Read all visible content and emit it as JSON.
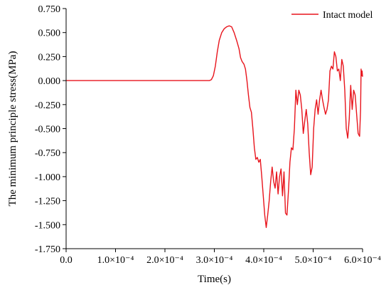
{
  "chart_data": {
    "type": "line",
    "title": "",
    "xlabel": "Time(s)",
    "ylabel": "The minimum principle stress(MPa)",
    "xlim": [
      0,
      0.0006
    ],
    "ylim": [
      -1.75,
      0.75
    ],
    "grid": false,
    "legend_position": "top-right",
    "x_ticks": [
      0,
      0.0001,
      0.0002,
      0.0003,
      0.0004,
      0.0005,
      0.0006
    ],
    "x_tick_labels": [
      "0.0",
      "1.0×10⁻⁴",
      "2.0×10⁻⁴",
      "3.0×10⁻⁴",
      "4.0×10⁻⁴",
      "5.0×10⁻⁴",
      "6.0×10⁻⁴"
    ],
    "y_ticks": [
      0.75,
      0.5,
      0.25,
      0,
      -0.25,
      -0.5,
      -0.75,
      -1,
      -1.25,
      -1.5,
      -1.75
    ],
    "y_tick_labels": [
      "0.750",
      "0.500",
      "0.250",
      "0.000",
      "-0.250",
      "-0.500",
      "-0.750",
      "-1.000",
      "-1.250",
      "-1.500",
      "-1.750"
    ],
    "series": [
      {
        "name": "Intact model",
        "color": "#e8141c",
        "points": [
          [
            0.0,
            0.0
          ],
          [
            0.00029,
            0.0
          ],
          [
            0.000294,
            0.01
          ],
          [
            0.000298,
            0.05
          ],
          [
            0.000302,
            0.15
          ],
          [
            0.000306,
            0.3
          ],
          [
            0.00031,
            0.42
          ],
          [
            0.000315,
            0.5
          ],
          [
            0.00032,
            0.54
          ],
          [
            0.000325,
            0.56
          ],
          [
            0.00033,
            0.57
          ],
          [
            0.000335,
            0.56
          ],
          [
            0.00034,
            0.5
          ],
          [
            0.000345,
            0.42
          ],
          [
            0.00035,
            0.33
          ],
          [
            0.000353,
            0.24
          ],
          [
            0.000356,
            0.2
          ],
          [
            0.00036,
            0.17
          ],
          [
            0.000363,
            0.12
          ],
          [
            0.000366,
            0.0
          ],
          [
            0.000369,
            -0.15
          ],
          [
            0.000372,
            -0.28
          ],
          [
            0.000375,
            -0.33
          ],
          [
            0.000378,
            -0.5
          ],
          [
            0.000381,
            -0.7
          ],
          [
            0.000384,
            -0.82
          ],
          [
            0.000387,
            -0.8
          ],
          [
            0.00039,
            -0.85
          ],
          [
            0.000393,
            -0.82
          ],
          [
            0.000396,
            -1.0
          ],
          [
            0.000399,
            -1.2
          ],
          [
            0.000402,
            -1.4
          ],
          [
            0.000405,
            -1.53
          ],
          [
            0.000408,
            -1.4
          ],
          [
            0.000411,
            -1.25
          ],
          [
            0.000414,
            -1.05
          ],
          [
            0.000417,
            -0.9
          ],
          [
            0.00042,
            -1.05
          ],
          [
            0.000423,
            -1.12
          ],
          [
            0.000426,
            -0.95
          ],
          [
            0.000429,
            -1.18
          ],
          [
            0.000432,
            -1.0
          ],
          [
            0.000435,
            -0.92
          ],
          [
            0.000438,
            -1.2
          ],
          [
            0.000441,
            -0.95
          ],
          [
            0.000444,
            -1.38
          ],
          [
            0.000447,
            -1.4
          ],
          [
            0.00045,
            -1.15
          ],
          [
            0.000453,
            -0.85
          ],
          [
            0.000456,
            -0.7
          ],
          [
            0.000459,
            -0.72
          ],
          [
            0.000462,
            -0.5
          ],
          [
            0.000465,
            -0.1
          ],
          [
            0.000468,
            -0.25
          ],
          [
            0.000471,
            -0.1
          ],
          [
            0.000474,
            -0.15
          ],
          [
            0.000477,
            -0.3
          ],
          [
            0.00048,
            -0.55
          ],
          [
            0.000483,
            -0.42
          ],
          [
            0.000486,
            -0.3
          ],
          [
            0.000489,
            -0.45
          ],
          [
            0.000492,
            -0.75
          ],
          [
            0.000495,
            -0.98
          ],
          [
            0.000498,
            -0.9
          ],
          [
            0.000501,
            -0.5
          ],
          [
            0.000504,
            -0.3
          ],
          [
            0.000507,
            -0.2
          ],
          [
            0.00051,
            -0.35
          ],
          [
            0.000513,
            -0.2
          ],
          [
            0.000516,
            -0.1
          ],
          [
            0.000519,
            -0.2
          ],
          [
            0.000522,
            -0.28
          ],
          [
            0.000525,
            -0.35
          ],
          [
            0.000528,
            -0.3
          ],
          [
            0.000531,
            -0.2
          ],
          [
            0.000534,
            0.1
          ],
          [
            0.000537,
            0.15
          ],
          [
            0.00054,
            0.12
          ],
          [
            0.000543,
            0.3
          ],
          [
            0.000546,
            0.25
          ],
          [
            0.000549,
            0.1
          ],
          [
            0.000552,
            0.12
          ],
          [
            0.000555,
            0.0
          ],
          [
            0.000558,
            0.22
          ],
          [
            0.000561,
            0.15
          ],
          [
            0.000564,
            -0.1
          ],
          [
            0.000567,
            -0.5
          ],
          [
            0.00057,
            -0.6
          ],
          [
            0.000573,
            -0.4
          ],
          [
            0.000576,
            -0.05
          ],
          [
            0.000579,
            -0.3
          ],
          [
            0.000582,
            -0.1
          ],
          [
            0.000585,
            -0.15
          ],
          [
            0.000588,
            -0.35
          ],
          [
            0.000591,
            -0.55
          ],
          [
            0.000594,
            -0.58
          ],
          [
            0.000596,
            -0.3
          ],
          [
            0.000597,
            0.12
          ],
          [
            0.000598,
            0.05
          ],
          [
            0.000599,
            0.1
          ],
          [
            0.0006,
            0.04
          ]
        ]
      }
    ]
  }
}
